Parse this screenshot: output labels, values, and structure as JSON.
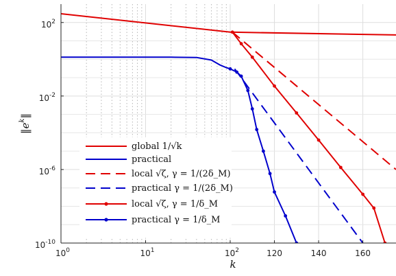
{
  "chart_data": {
    "type": "line",
    "xlabel": "k",
    "ylabel": "||e^k||",
    "x_axis": {
      "segments": [
        {
          "scale": "log",
          "range": [
            1,
            100
          ],
          "ticks": [
            {
              "value": 1,
              "base": "10",
              "exp": "0"
            },
            {
              "value": 10,
              "base": "10",
              "exp": "1"
            },
            {
              "value": 100,
              "base": "10",
              "exp": "2"
            }
          ]
        },
        {
          "scale": "linear",
          "range": [
            100,
            175
          ],
          "ticks": [
            {
              "value": 120,
              "label": "120"
            },
            {
              "value": 140,
              "label": "140"
            },
            {
              "value": 160,
              "label": "160"
            }
          ]
        }
      ]
    },
    "y_axis": {
      "scale": "log",
      "range": [
        1e-10,
        1000
      ],
      "ticks": [
        {
          "value": 1e-10,
          "base": "10",
          "exp": "-10"
        },
        {
          "value": 1e-06,
          "base": "10",
          "exp": "-6"
        },
        {
          "value": 0.01,
          "base": "10",
          "exp": "-2"
        },
        {
          "value": 100,
          "base": "10",
          "exp": "2"
        }
      ]
    },
    "grid": true,
    "legend_position": "bottom-left",
    "series": [
      {
        "name": "global 1/√k",
        "color": "#e00000",
        "style": "solid",
        "marker": "none",
        "points": [
          [
            1,
            300
          ],
          [
            100,
            30
          ],
          [
            175,
            21
          ]
        ]
      },
      {
        "name": "practical",
        "color": "#0000cc",
        "style": "solid",
        "marker": "none",
        "points": [
          [
            1,
            1.3
          ],
          [
            5,
            1.3
          ],
          [
            20,
            1.3
          ],
          [
            40,
            1.25
          ],
          [
            60,
            0.9
          ],
          [
            75,
            0.5
          ],
          [
            90,
            0.35
          ],
          [
            100,
            0.3
          ]
        ]
      },
      {
        "name": "local √ζ, γ = 1/(2δ_M)",
        "color": "#e00000",
        "style": "dashed",
        "marker": "none",
        "points": [
          [
            101,
            30
          ],
          [
            175,
            1e-06
          ]
        ]
      },
      {
        "name": "practical γ = 1/(2δ_M)",
        "color": "#0000cc",
        "style": "dashed",
        "marker": "none",
        "points": [
          [
            102,
            0.3
          ],
          [
            160,
            1e-10
          ]
        ]
      },
      {
        "name": "local √ζ, γ = 1/δ_M",
        "color": "#e00000",
        "style": "solid",
        "marker": "dot",
        "points": [
          [
            101,
            30
          ],
          [
            105,
            7
          ],
          [
            110,
            1.3
          ],
          [
            120,
            0.035
          ],
          [
            130,
            0.0012
          ],
          [
            140,
            4e-05
          ],
          [
            150,
            1.3e-06
          ],
          [
            160,
            4.5e-08
          ],
          [
            165,
            8e-09
          ],
          [
            170,
            1e-10
          ]
        ]
      },
      {
        "name": "practical γ = 1/δ_M",
        "color": "#0000cc",
        "style": "solid",
        "marker": "dot",
        "points": [
          [
            100,
            0.3
          ],
          [
            103,
            0.2
          ],
          [
            105,
            0.12
          ],
          [
            108,
            0.02
          ],
          [
            110,
            0.002
          ],
          [
            112,
            0.00015
          ],
          [
            115,
            1e-05
          ],
          [
            118,
            6e-07
          ],
          [
            120,
            6e-08
          ],
          [
            125,
            3e-09
          ],
          [
            130,
            1e-10
          ]
        ]
      }
    ]
  }
}
